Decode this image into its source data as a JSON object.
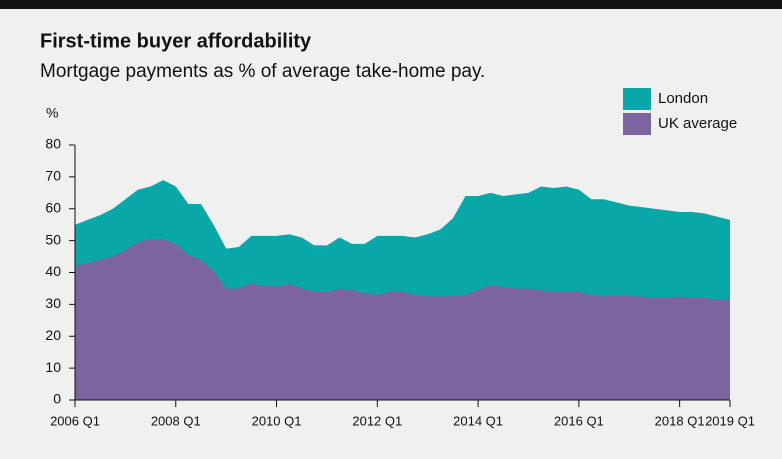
{
  "chart_data": {
    "type": "area",
    "title": "First-time buyer affordability",
    "subtitle": "Mortgage payments as % of average take-home pay.",
    "y_label": "%",
    "categories": [
      "2006 Q1",
      null,
      null,
      null,
      null,
      null,
      null,
      null,
      "2008 Q1",
      null,
      null,
      null,
      null,
      null,
      null,
      null,
      "2010 Q1",
      null,
      null,
      null,
      null,
      null,
      null,
      null,
      "2012 Q1",
      null,
      null,
      null,
      null,
      null,
      null,
      null,
      "2014 Q1",
      null,
      null,
      null,
      null,
      null,
      null,
      null,
      "2016 Q1",
      null,
      null,
      null,
      null,
      null,
      null,
      null,
      "2018 Q1",
      null,
      null,
      null,
      "2019 Q1"
    ],
    "series": [
      {
        "name": "London",
        "color": "#0aa7a9",
        "values": [
          55,
          56.5,
          58,
          60,
          63,
          66,
          67,
          69,
          67,
          61.5,
          61.5,
          55,
          47.5,
          48,
          51.5,
          51.5,
          51.5,
          52,
          51,
          48.5,
          48.5,
          51,
          49,
          49,
          51.5,
          51.5,
          51.5,
          51,
          52,
          53.5,
          57,
          64,
          64,
          65,
          64,
          64.5,
          65,
          67,
          66.5,
          67,
          66,
          63,
          63,
          62,
          61,
          60.5,
          60,
          59.5,
          59,
          59,
          58.5,
          57.5,
          56.5
        ]
      },
      {
        "name": "UK average",
        "color": "#7b64a0",
        "values": [
          42,
          43,
          44,
          45,
          47,
          49.5,
          50.5,
          50.5,
          49,
          45.5,
          44,
          40.5,
          35,
          35,
          36.5,
          36,
          35.5,
          36.5,
          35,
          34,
          34,
          35,
          34.5,
          33.5,
          33,
          34,
          34,
          33,
          32.5,
          32.5,
          32.5,
          33,
          34.5,
          36,
          35.5,
          35,
          35,
          34.5,
          34,
          34,
          34,
          33,
          32.5,
          33,
          32.5,
          32.5,
          32,
          32,
          32.5,
          32,
          32,
          31.5,
          31.5
        ]
      }
    ],
    "ylim": [
      0,
      80
    ],
    "yticks": [
      0,
      10,
      20,
      30,
      40,
      50,
      60,
      70,
      80
    ],
    "legend": "top-right"
  }
}
